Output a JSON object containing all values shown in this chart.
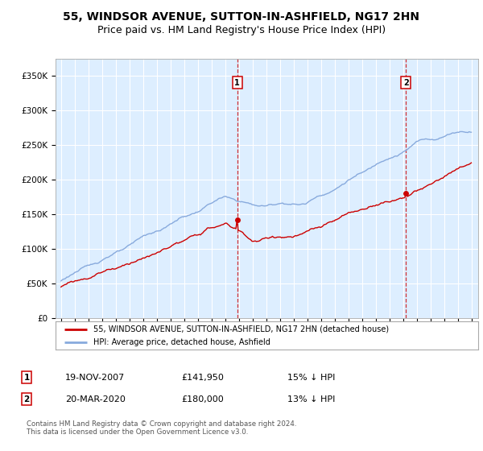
{
  "title": "55, WINDSOR AVENUE, SUTTON-IN-ASHFIELD, NG17 2HN",
  "subtitle": "Price paid vs. HM Land Registry's House Price Index (HPI)",
  "ylabel_vals": [
    0,
    50000,
    100000,
    150000,
    200000,
    250000,
    300000,
    350000
  ],
  "ylabel_labels": [
    "£0",
    "£50K",
    "£100K",
    "£150K",
    "£200K",
    "£250K",
    "£300K",
    "£350K"
  ],
  "xlim_start": 1994.6,
  "xlim_end": 2025.5,
  "ylim": [
    0,
    375000
  ],
  "sale1_x": 2007.89,
  "sale1_y": 141950,
  "sale1_label": "1",
  "sale1_date": "19-NOV-2007",
  "sale1_price": "£141,950",
  "sale1_pct": "15% ↓ HPI",
  "sale2_x": 2020.22,
  "sale2_y": 180000,
  "sale2_label": "2",
  "sale2_date": "20-MAR-2020",
  "sale2_price": "£180,000",
  "sale2_pct": "13% ↓ HPI",
  "line_color_property": "#cc0000",
  "line_color_hpi": "#88aadd",
  "bg_color": "#ddeeff",
  "grid_color": "#ffffff",
  "legend_line1": "55, WINDSOR AVENUE, SUTTON-IN-ASHFIELD, NG17 2HN (detached house)",
  "legend_line2": "HPI: Average price, detached house, Ashfield",
  "footer": "Contains HM Land Registry data © Crown copyright and database right 2024.\nThis data is licensed under the Open Government Licence v3.0.",
  "title_fontsize": 10,
  "subtitle_fontsize": 9,
  "axis_fontsize": 7.5
}
